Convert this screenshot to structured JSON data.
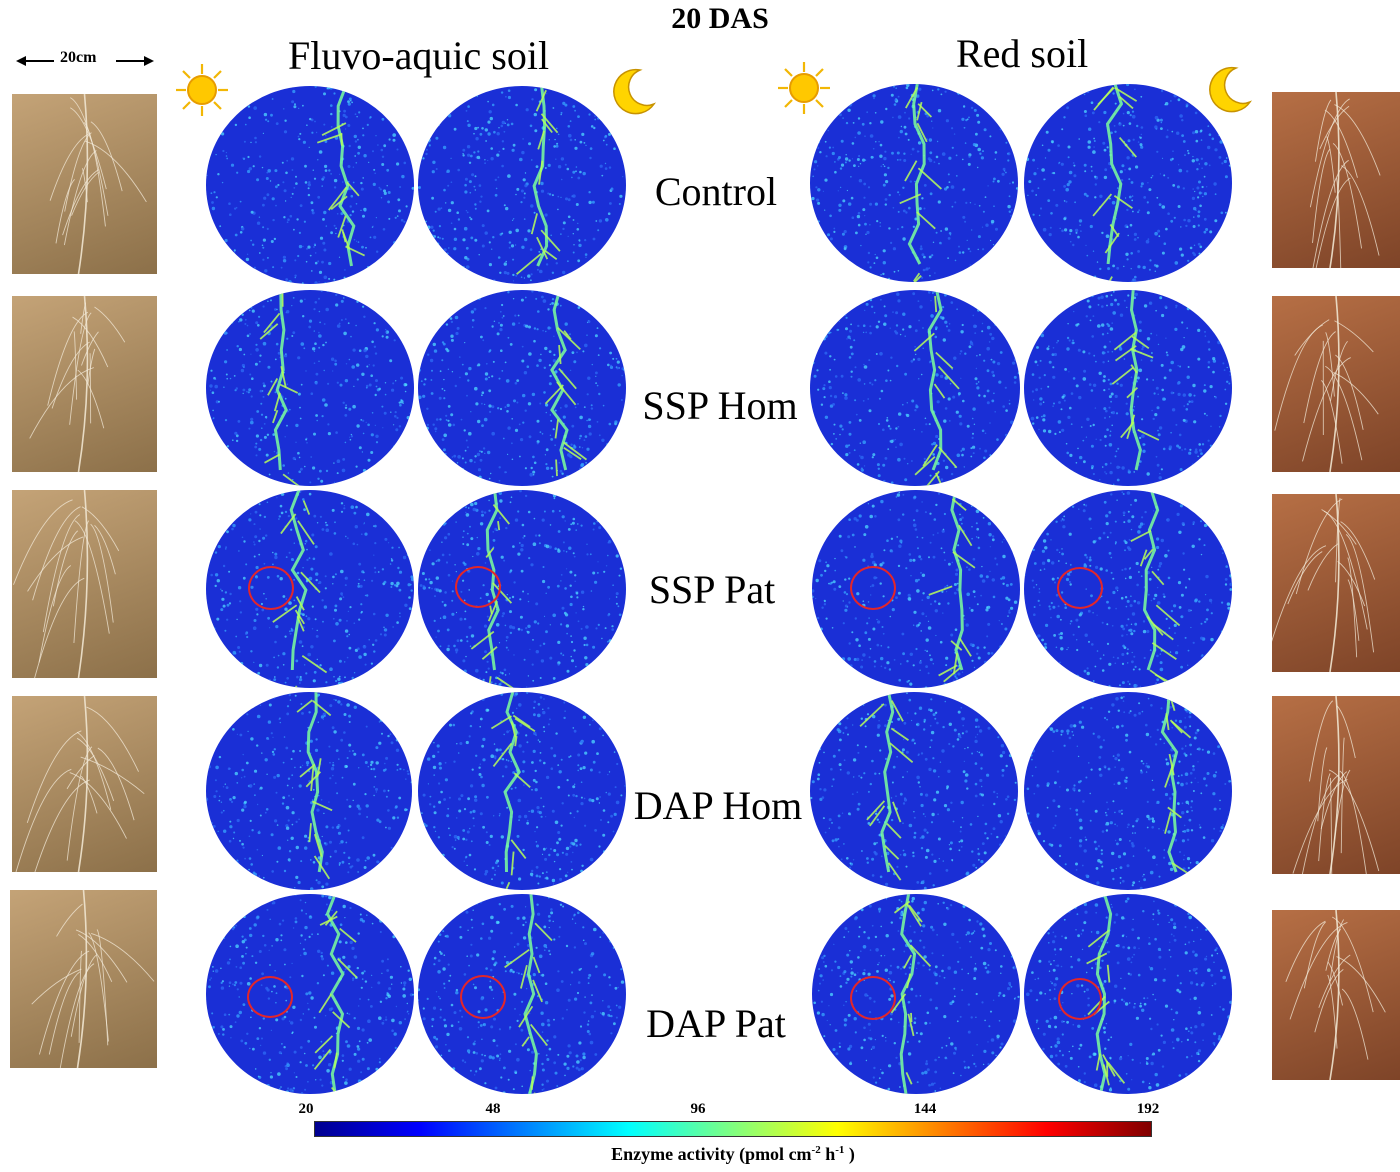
{
  "title": "20 DAS",
  "scale_label": "20cm",
  "soils": [
    {
      "name": "Fluvo-aquic soil",
      "photo_tone": [
        "#c4a377",
        "#8c7049"
      ]
    },
    {
      "name": "Red soil",
      "photo_tone": [
        "#b66f45",
        "#7e4428"
      ]
    }
  ],
  "treatments": [
    "Control",
    "SSP Hom",
    "SSP Pat",
    "DAP Hom",
    "DAP Pat"
  ],
  "icons": {
    "day": "sun-icon",
    "night": "crescent-moon-icon"
  },
  "colorbar": {
    "ticks": [
      "20",
      "48",
      "96",
      "144",
      "192"
    ],
    "label": "Enzyme activity (pmol cm",
    "label_sup1": "-2",
    "label_mid": " h",
    "label_sup2": "-1",
    "label_end": " )",
    "colors": [
      "#00008f",
      "#0000ff",
      "#0080ff",
      "#00ffff",
      "#80ff80",
      "#ffff00",
      "#ff8000",
      "#ff0000",
      "#800000"
    ]
  },
  "disk_base_color": "#1a2fd6",
  "highlight_color": "#e3262a"
}
